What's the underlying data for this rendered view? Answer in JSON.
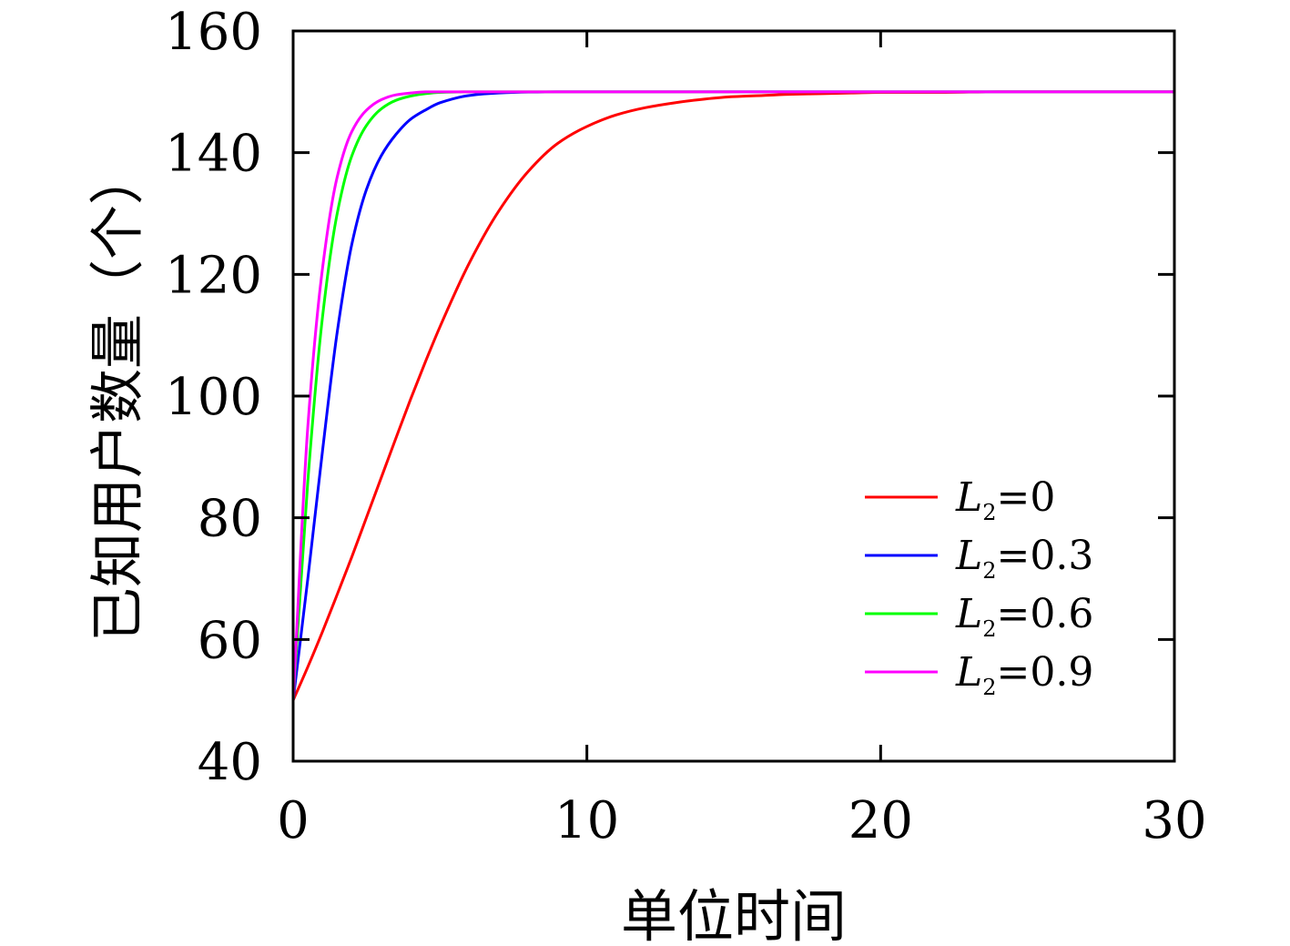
{
  "chart_data": {
    "type": "line",
    "title": "",
    "xlabel": "单位时间",
    "ylabel": "已知用户数量（个）",
    "xlim": [
      0,
      30
    ],
    "ylim": [
      40,
      160
    ],
    "xticks": [
      0,
      10,
      20,
      30
    ],
    "yticks": [
      40,
      60,
      80,
      100,
      120,
      140,
      160
    ],
    "xtick_labels": [
      "0",
      "10",
      "20",
      "30"
    ],
    "ytick_labels": [
      "40",
      "60",
      "80",
      "100",
      "120",
      "140",
      "160"
    ],
    "grid": false,
    "legend_position": "lower-right",
    "x": [
      0,
      0.5,
      1,
      1.5,
      2,
      2.5,
      3,
      3.5,
      4,
      4.5,
      5,
      6,
      7,
      8,
      9,
      10,
      11,
      12,
      13,
      14,
      15,
      16,
      17,
      18,
      19,
      20,
      22,
      24,
      26,
      28,
      30
    ],
    "series": [
      {
        "name": "L2=0",
        "legend_main": "L",
        "legend_sub": "2",
        "legend_value": "=0",
        "color": "#ff0000",
        "values": [
          50,
          55.5,
          61.3,
          67.4,
          73.6,
          80.1,
          86.6,
          93.1,
          99.5,
          105.6,
          111.4,
          121.9,
          130.4,
          136.9,
          141.5,
          144.3,
          146.2,
          147.4,
          148.2,
          148.8,
          149.2,
          149.4,
          149.6,
          149.7,
          149.8,
          149.9,
          149.9,
          150,
          150,
          150,
          150
        ]
      },
      {
        "name": "L2=0.3",
        "legend_main": "L",
        "legend_sub": "2",
        "legend_value": "=0.3",
        "color": "#0000ff",
        "values": [
          50,
          70,
          91,
          110.5,
          125,
          134,
          139.5,
          143,
          145.5,
          147,
          148.2,
          149.4,
          149.8,
          149.95,
          150,
          150,
          150,
          150,
          150,
          150,
          150,
          150,
          150,
          150,
          150,
          150,
          150,
          150,
          150,
          150,
          150
        ]
      },
      {
        "name": "L2=0.6",
        "legend_main": "L",
        "legend_sub": "2",
        "legend_value": "=0.6",
        "color": "#00ff00",
        "values": [
          50,
          86,
          113,
          130,
          139.5,
          144.5,
          147.2,
          148.6,
          149.3,
          149.7,
          149.9,
          150,
          150,
          150,
          150,
          150,
          150,
          150,
          150,
          150,
          150,
          150,
          150,
          150,
          150,
          150,
          150,
          150,
          150,
          150,
          150
        ]
      },
      {
        "name": "L2=0.9",
        "legend_main": "L",
        "legend_sub": "2",
        "legend_value": "=0.9",
        "color": "#ff00ff",
        "values": [
          50,
          95,
          121,
          136,
          143.5,
          147,
          148.7,
          149.5,
          149.8,
          150,
          150,
          150,
          150,
          150,
          150,
          150,
          150,
          150,
          150,
          150,
          150,
          150,
          150,
          150,
          150,
          150,
          150,
          150,
          150,
          150,
          150
        ]
      }
    ]
  }
}
